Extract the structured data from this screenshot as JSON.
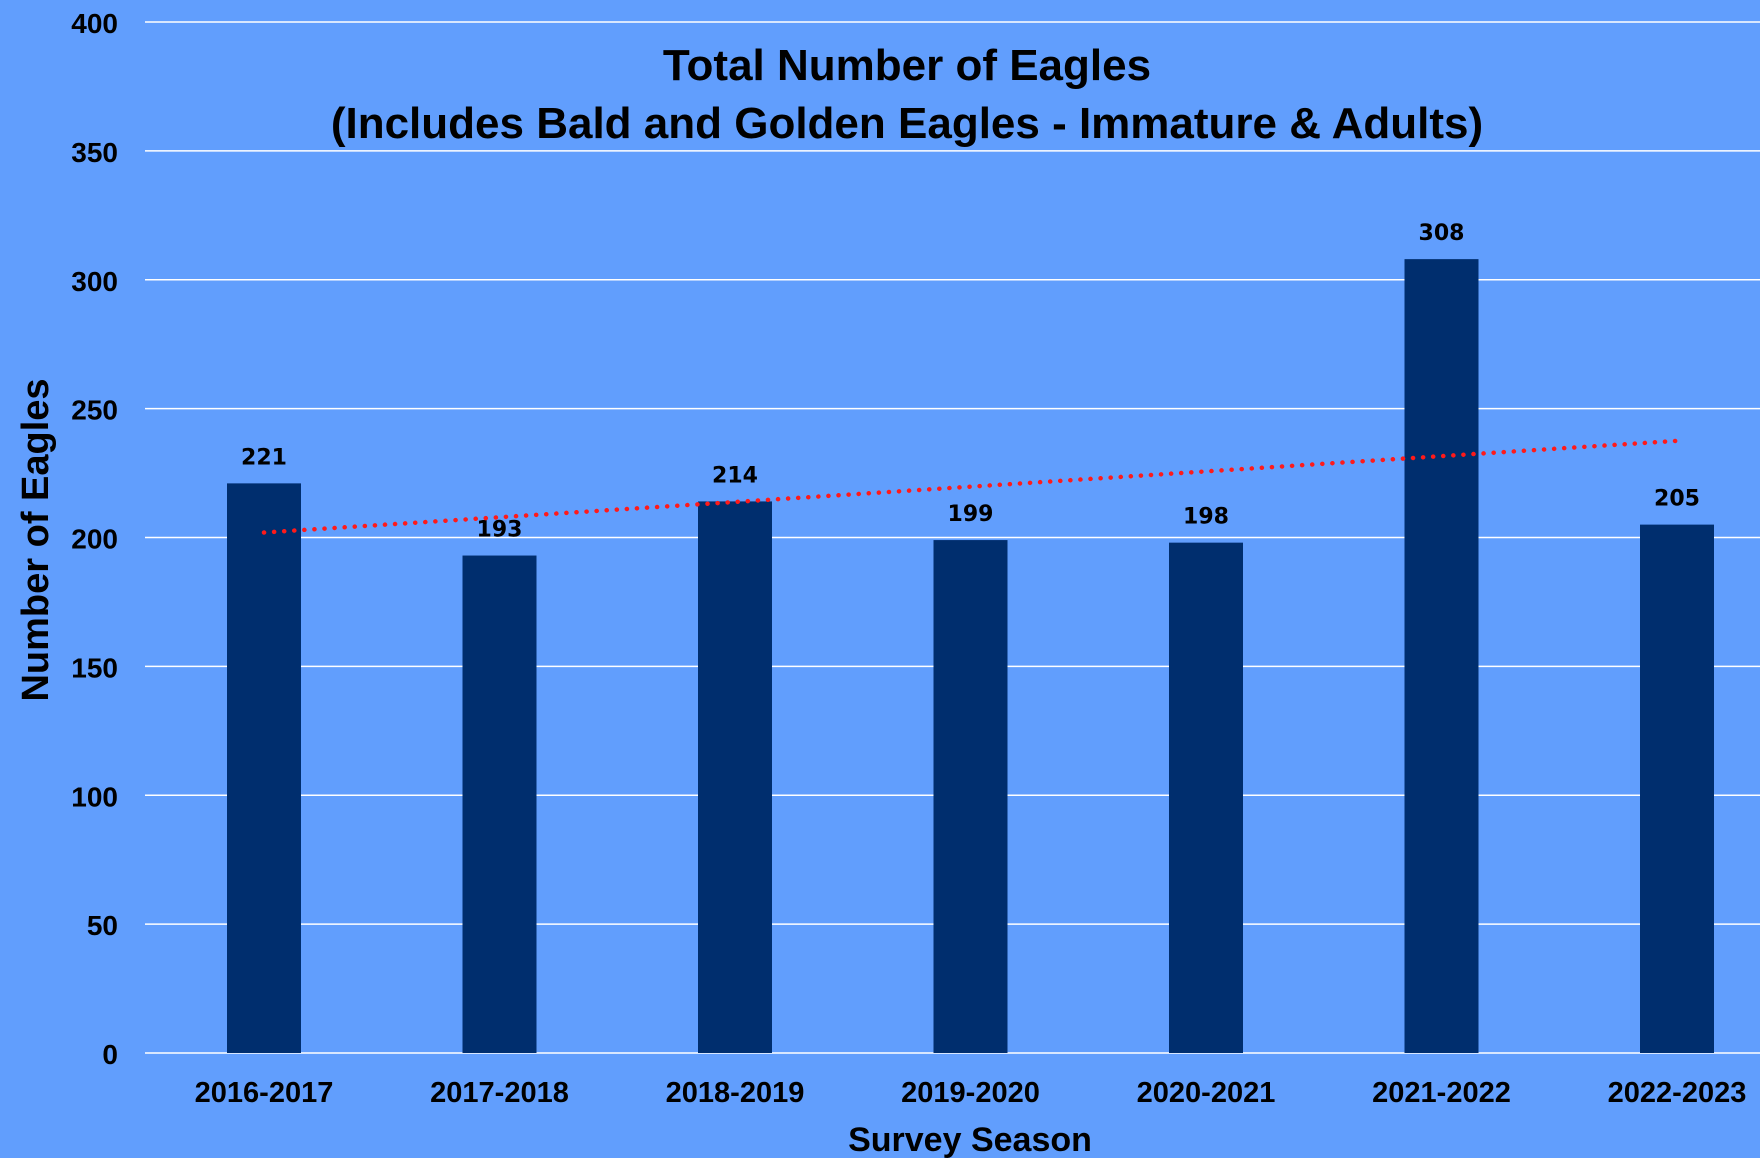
{
  "chart_data": {
    "type": "bar",
    "title_line1": "Total Number of Eagles",
    "title_line2": "(Includes Bald and Golden Eagles - Immature & Adults)",
    "xlabel": "Survey Season",
    "ylabel": "Number of Eagles",
    "categories": [
      "2016-2017",
      "2017-2018",
      "2018-2019",
      "2019-2020",
      "2020-2021",
      "2021-2022",
      "2022-2023"
    ],
    "values": [
      221,
      193,
      214,
      199,
      198,
      308,
      205
    ],
    "data_labels": [
      "221",
      "193",
      "214",
      "199",
      "198",
      "308",
      "205"
    ],
    "ylim": [
      0,
      400
    ],
    "yticks": [
      0,
      50,
      100,
      150,
      200,
      250,
      300,
      350,
      400
    ],
    "ytick_labels": [
      "0",
      "50",
      "100",
      "150",
      "200",
      "250",
      "300",
      "350",
      "400"
    ],
    "trendline": {
      "type": "linear",
      "style": "dotted",
      "color": "#ff1a1a"
    },
    "grid": true,
    "colors": {
      "background": "#619efd",
      "bar": "#002e6e",
      "gridline": "#ffffff",
      "text": "#000000",
      "data_label": "#000000"
    }
  }
}
